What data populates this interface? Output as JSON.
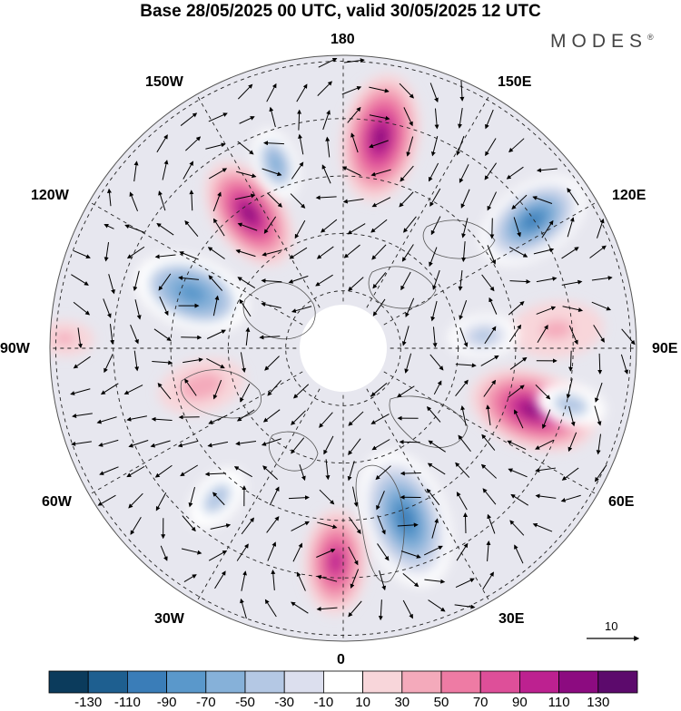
{
  "header": {
    "title": "Base 28/05/2025 00 UTC, valid 30/05/2025 12 UTC",
    "brand": "MODES"
  },
  "longitude_labels": {
    "top": "180",
    "bottom": "0",
    "left": "90W",
    "right": "90E",
    "w150": "150W",
    "e150": "150E",
    "w120": "120W",
    "e120": "120E",
    "w60": "60W",
    "e60": "60E",
    "w30": "30W",
    "e30": "30E"
  },
  "reference_vector": {
    "label": "10"
  },
  "colorbar": {
    "ticks": [
      "-130",
      "-110",
      "-90",
      "-70",
      "-50",
      "-30",
      "-10",
      "10",
      "30",
      "50",
      "70",
      "90",
      "110",
      "130"
    ],
    "colors": [
      "#0b3b5c",
      "#1e5f90",
      "#3a7db8",
      "#5a98cb",
      "#86b1d9",
      "#b4c8e4",
      "#dcdfee",
      "#ffffff",
      "#f8d6da",
      "#f4aabb",
      "#ee7ba4",
      "#de4f99",
      "#bd2190",
      "#8c0b80",
      "#5c0a6c"
    ]
  },
  "map_features": {
    "anomalies": [
      {
        "lon": 170,
        "r": 0.73,
        "size": 0.22,
        "value": 115,
        "name": "pos-150e"
      },
      {
        "lon": 124,
        "r": 0.78,
        "size": 0.2,
        "value": -110,
        "name": "neg-120e"
      },
      {
        "lon": 95,
        "r": 0.73,
        "size": 0.16,
        "value": 45,
        "name": "pos-100e"
      },
      {
        "lon": 95,
        "r": 0.48,
        "size": 0.12,
        "value": -50,
        "name": "neg-95e"
      },
      {
        "lon": 72,
        "r": 0.68,
        "size": 0.22,
        "value": 110,
        "name": "pos-65e"
      },
      {
        "lon": 76,
        "r": 0.8,
        "size": 0.12,
        "value": -40,
        "name": "neg-80e"
      },
      {
        "lon": 20,
        "r": 0.62,
        "size": 0.24,
        "value": -110,
        "name": "neg-30e"
      },
      {
        "lon": -2,
        "r": 0.73,
        "size": 0.18,
        "value": 95,
        "name": "pos-0"
      },
      {
        "lon": -40,
        "r": 0.67,
        "size": 0.12,
        "value": -40,
        "name": "neg-45w"
      },
      {
        "lon": -75,
        "r": 0.5,
        "size": 0.15,
        "value": 35,
        "name": "pos-70w"
      },
      {
        "lon": -110,
        "r": 0.55,
        "size": 0.2,
        "value": -75,
        "name": "neg-100w"
      },
      {
        "lon": -92,
        "r": 0.95,
        "size": 0.1,
        "value": 45,
        "name": "pos-95w"
      },
      {
        "lon": -145,
        "r": 0.56,
        "size": 0.2,
        "value": 110,
        "name": "pos-135w"
      },
      {
        "lon": -160,
        "r": 0.67,
        "size": 0.12,
        "value": -55,
        "name": "neg-160w"
      }
    ]
  }
}
